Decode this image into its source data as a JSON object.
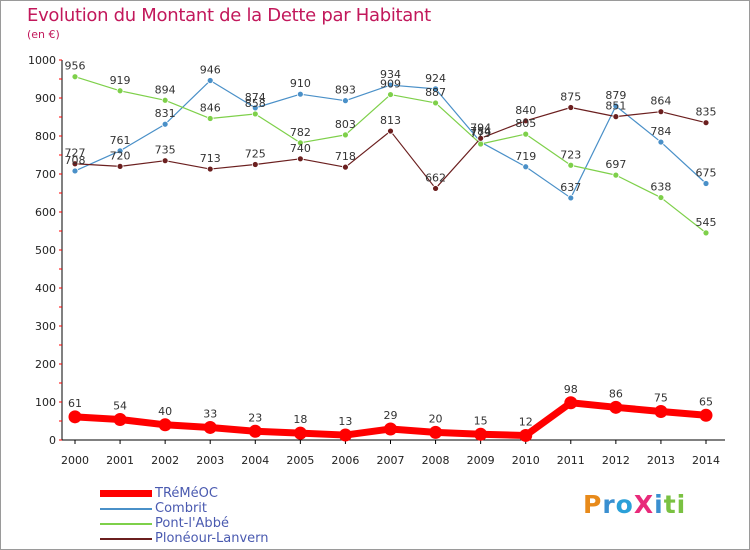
{
  "header": {
    "title": "Evolution du Montant de la Dette par Habitant",
    "subtitle": "(en €)"
  },
  "logo": {
    "text": "ProXiti"
  },
  "chart_data": {
    "type": "line",
    "x": [
      "2000",
      "2001",
      "2002",
      "2003",
      "2004",
      "2005",
      "2006",
      "2007",
      "2008",
      "2009",
      "2010",
      "2011",
      "2012",
      "2013",
      "2014"
    ],
    "ylim": [
      0,
      1000
    ],
    "yticks": [
      0,
      100,
      200,
      300,
      400,
      500,
      600,
      700,
      800,
      900,
      1000
    ],
    "grid": false,
    "legend_position": "bottom-left",
    "series": [
      {
        "name": "TRéMéOC",
        "color": "#ff0000",
        "values": [
          61,
          54,
          40,
          33,
          23,
          18,
          13,
          29,
          20,
          15,
          12,
          98,
          86,
          75,
          65
        ]
      },
      {
        "name": "Combrit",
        "color": "#4a90c8",
        "values": [
          708,
          761,
          831,
          946,
          874,
          910,
          893,
          934,
          924,
          784,
          719,
          637,
          879,
          784,
          675
        ]
      },
      {
        "name": "Pont-l'Abbé",
        "color": "#7ed04a",
        "values": [
          956,
          919,
          894,
          846,
          858,
          782,
          803,
          909,
          887,
          779,
          805,
          723,
          697,
          638,
          545
        ]
      },
      {
        "name": "Plonéour-Lanvern",
        "color": "#6b1f1f",
        "values": [
          727,
          720,
          735,
          713,
          725,
          740,
          718,
          813,
          662,
          794,
          840,
          875,
          851,
          864,
          835
        ]
      }
    ]
  }
}
